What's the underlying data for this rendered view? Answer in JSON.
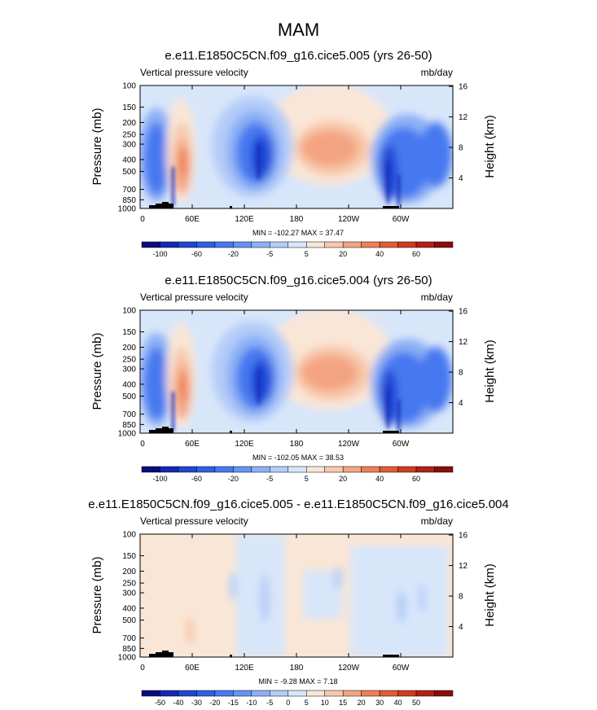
{
  "figure": {
    "title": "MAM",
    "variable_label": "Vertical pressure velocity",
    "units_label": "mb/day",
    "left_axis_label": "Pressure (mb)",
    "right_axis_label": "Height (km)"
  },
  "chart_data": [
    {
      "type": "heatmap",
      "title": "e.e11.E1850C5CN.f09_g16.cice5.005 (yrs 26-50)",
      "variable_label": "Vertical pressure velocity",
      "units_label": "mb/day",
      "xlabel": "",
      "ylabel": "Pressure (mb)",
      "y2label": "Height (km)",
      "x_ticks": [
        "0",
        "60E",
        "120E",
        "180",
        "120W",
        "60W"
      ],
      "x_tick_values": [
        0,
        60,
        120,
        180,
        240,
        300
      ],
      "xlim": [
        0,
        360
      ],
      "y_ticks": [
        "100",
        "150",
        "200",
        "250",
        "300",
        "400",
        "500",
        "700",
        "850",
        "1000"
      ],
      "y_tick_values": [
        100,
        150,
        200,
        250,
        300,
        400,
        500,
        700,
        850,
        1000
      ],
      "ylim": [
        1000,
        100
      ],
      "y_scale": "log",
      "y2_ticks": [
        "16",
        "12",
        "8",
        "4"
      ],
      "y2_tick_values": [
        16,
        12,
        8,
        4
      ],
      "stats": "MIN = -102.27  MAX = 37.47",
      "min": -102.27,
      "max": 37.47,
      "colorbar_labels": [
        "-100",
        "-60",
        "-20",
        "-5",
        "5",
        "20",
        "40",
        "60"
      ],
      "colorbar_colors": [
        "#0a0a80",
        "#1428b4",
        "#1e46d2",
        "#2d60e6",
        "#4678f0",
        "#6692f2",
        "#8cb0f5",
        "#b4ccf8",
        "#d8e6fa",
        "#fae6d6",
        "#f8c8ac",
        "#f4a482",
        "#ee8056",
        "#e45c32",
        "#d03c1e",
        "#b02212",
        "#8c0c08"
      ]
    },
    {
      "type": "heatmap",
      "title": "e.e11.E1850C5CN.f09_g16.cice5.004 (yrs 26-50)",
      "variable_label": "Vertical pressure velocity",
      "units_label": "mb/day",
      "xlabel": "",
      "ylabel": "Pressure (mb)",
      "y2label": "Height (km)",
      "x_ticks": [
        "0",
        "60E",
        "120E",
        "180",
        "120W",
        "60W"
      ],
      "x_tick_values": [
        0,
        60,
        120,
        180,
        240,
        300
      ],
      "xlim": [
        0,
        360
      ],
      "y_ticks": [
        "100",
        "150",
        "200",
        "250",
        "300",
        "400",
        "500",
        "700",
        "850",
        "1000"
      ],
      "y_tick_values": [
        100,
        150,
        200,
        250,
        300,
        400,
        500,
        700,
        850,
        1000
      ],
      "ylim": [
        1000,
        100
      ],
      "y_scale": "log",
      "y2_ticks": [
        "16",
        "12",
        "8",
        "4"
      ],
      "y2_tick_values": [
        16,
        12,
        8,
        4
      ],
      "stats": "MIN = -102.05  MAX = 38.53",
      "min": -102.05,
      "max": 38.53,
      "colorbar_labels": [
        "-100",
        "-60",
        "-20",
        "-5",
        "5",
        "20",
        "40",
        "60"
      ],
      "colorbar_colors": [
        "#0a0a80",
        "#1428b4",
        "#1e46d2",
        "#2d60e6",
        "#4678f0",
        "#6692f2",
        "#8cb0f5",
        "#b4ccf8",
        "#d8e6fa",
        "#fae6d6",
        "#f8c8ac",
        "#f4a482",
        "#ee8056",
        "#e45c32",
        "#d03c1e",
        "#b02212",
        "#8c0c08"
      ]
    },
    {
      "type": "heatmap",
      "title": "e.e11.E1850C5CN.f09_g16.cice5.005 - e.e11.E1850C5CN.f09_g16.cice5.004",
      "variable_label": "Vertical pressure velocity",
      "units_label": "mb/day",
      "xlabel": "",
      "ylabel": "Pressure (mb)",
      "y2label": "Height (km)",
      "x_ticks": [
        "0",
        "60E",
        "120E",
        "180",
        "120W",
        "60W"
      ],
      "x_tick_values": [
        0,
        60,
        120,
        180,
        240,
        300
      ],
      "xlim": [
        0,
        360
      ],
      "y_ticks": [
        "100",
        "150",
        "200",
        "250",
        "300",
        "400",
        "500",
        "700",
        "850",
        "1000"
      ],
      "y_tick_values": [
        100,
        150,
        200,
        250,
        300,
        400,
        500,
        700,
        850,
        1000
      ],
      "ylim": [
        1000,
        100
      ],
      "y_scale": "log",
      "y2_ticks": [
        "16",
        "12",
        "8",
        "4"
      ],
      "y2_tick_values": [
        16,
        12,
        8,
        4
      ],
      "stats": "MIN = -9.28  MAX =  7.18",
      "min": -9.28,
      "max": 7.18,
      "colorbar_labels": [
        "-50",
        "-40",
        "-30",
        "-20",
        "-15",
        "-10",
        "-5",
        "0",
        "5",
        "10",
        "15",
        "20",
        "30",
        "40",
        "50"
      ],
      "colorbar_colors": [
        "#0a0a80",
        "#1428b4",
        "#1e46d2",
        "#2d60e6",
        "#4678f0",
        "#6692f2",
        "#8cb0f5",
        "#b4ccf8",
        "#d8e6fa",
        "#fae6d6",
        "#f8c8ac",
        "#f4a482",
        "#ee8056",
        "#e45c32",
        "#d03c1e",
        "#b02212",
        "#8c0c08"
      ]
    }
  ]
}
